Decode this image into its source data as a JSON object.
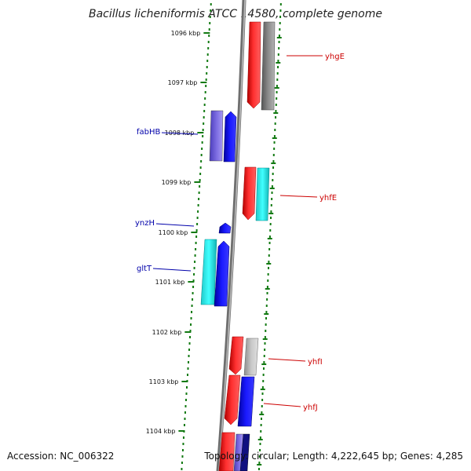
{
  "title": "Bacillus licheniformis ATCC 14580, complete genome",
  "accession_text": "Accession: NC_006322",
  "topology_text": "Topology: circular; Length: 4,222,645 bp; Genes: 4,285",
  "colors": {
    "axis_gray": "#777777",
    "tick_green": "#137a13",
    "forward_label": "#cc0000",
    "reverse_label": "#0000aa",
    "red": "#ff1a1a",
    "gray": "#9a9a9a",
    "blue": "#1010ee",
    "cyan": "#20d8d8",
    "purple": "#6a5acd",
    "navy": "#101080"
  },
  "kbp_ticks": [
    "1096 kbp",
    "1097 kbp",
    "1098 kbp",
    "1099 kbp",
    "1100 kbp",
    "1101 kbp",
    "1102 kbp",
    "1103 kbp",
    "1104 kbp"
  ],
  "gene_labels": {
    "reverse": [
      "fabHB",
      "ynzH",
      "gltT"
    ],
    "forward": [
      "yhgE",
      "yhfE",
      "yhfI",
      "yhfJ"
    ]
  }
}
